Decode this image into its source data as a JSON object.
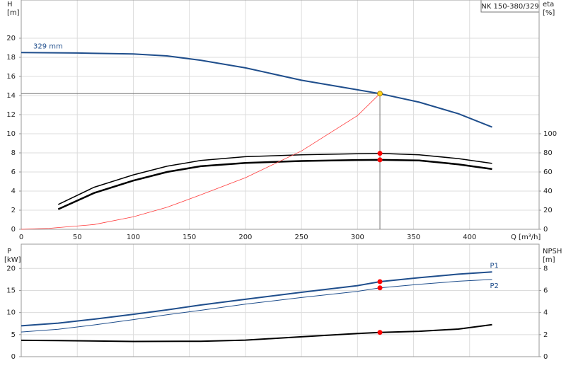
{
  "chart_data": [
    {
      "type": "line",
      "title": "NK 150-380/329",
      "ylabel": "H",
      "yunit": "[m]",
      "y2label": "eta",
      "y2unit": "[%]",
      "xlabel": "Q [m³/h]",
      "xlim": [
        0,
        462
      ],
      "xticks": [
        0,
        50,
        100,
        150,
        200,
        250,
        300,
        350,
        400
      ],
      "ylim": [
        0,
        24
      ],
      "yticks": [
        0,
        2,
        4,
        6,
        8,
        10,
        12,
        14,
        16,
        18,
        20
      ],
      "y2lim": [
        0,
        240
      ],
      "y2ticks": [
        0,
        20,
        40,
        60,
        80,
        100
      ],
      "grid": true,
      "crosshair": true,
      "series": [
        {
          "name": "329 mm",
          "label_at": "start-above",
          "color": "#1f4e8c",
          "width": 2,
          "x": [
            0,
            50,
            100,
            130,
            160,
            200,
            250,
            300,
            320,
            355,
            390,
            420
          ],
          "values": [
            18.5,
            18.45,
            18.35,
            18.15,
            17.7,
            16.9,
            15.6,
            14.6,
            14.2,
            13.3,
            12.1,
            10.7
          ]
        },
        {
          "color": "#000000",
          "width": 1.5,
          "axis": "y2",
          "x": [
            33,
            65,
            100,
            130,
            160,
            200,
            250,
            300,
            320,
            355,
            390,
            420
          ],
          "values": [
            26,
            44,
            57,
            66,
            72,
            76,
            78,
            79,
            79.5,
            78,
            74,
            69
          ]
        },
        {
          "color": "#000000",
          "width": 2.5,
          "axis": "y2",
          "x": [
            33,
            65,
            100,
            130,
            160,
            200,
            250,
            300,
            320,
            355,
            390,
            420
          ],
          "values": [
            21,
            38,
            51,
            60,
            66,
            69.5,
            71.5,
            72.5,
            72.7,
            72,
            68,
            63
          ]
        },
        {
          "color": "#ff3b3b",
          "width": 0.8,
          "x": [
            0,
            25,
            65,
            100,
            130,
            160,
            200,
            250,
            300,
            320
          ],
          "values": [
            0,
            0.1,
            0.5,
            1.3,
            2.3,
            3.6,
            5.4,
            8.2,
            11.9,
            14.2
          ]
        }
      ],
      "markers": [
        {
          "color": "#ffd21f",
          "x": [
            320
          ],
          "values": [
            14.2
          ]
        },
        {
          "color": "#ff0000",
          "axis": "y2",
          "x": [
            320,
            320
          ],
          "values": [
            79.5,
            72.7
          ]
        }
      ]
    },
    {
      "type": "line",
      "ylabel": "P",
      "yunit": "[kW]",
      "y2label": "NPSH",
      "y2unit": "[m]",
      "xlim": [
        0,
        462
      ],
      "xticks": [
        0,
        50,
        100,
        150,
        200,
        250,
        300,
        350,
        400
      ],
      "ylim": [
        0,
        25.5
      ],
      "yticks": [
        0,
        5,
        10,
        15,
        20
      ],
      "y2lim": [
        0,
        10.2
      ],
      "y2ticks": [
        0,
        2,
        4,
        6,
        8
      ],
      "grid": true,
      "series": [
        {
          "name": "P1",
          "label_at": "end-above",
          "color": "#1f4e8c",
          "width": 2,
          "x": [
            0,
            33,
            65,
            100,
            130,
            160,
            200,
            250,
            300,
            320,
            355,
            390,
            420
          ],
          "values": [
            7.0,
            7.6,
            8.5,
            9.6,
            10.6,
            11.7,
            13.0,
            14.6,
            16.1,
            17.0,
            17.9,
            18.7,
            19.2
          ]
        },
        {
          "name": "P2",
          "label_at": "end-below",
          "color": "#1f4e8c",
          "width": 1,
          "x": [
            0,
            33,
            65,
            100,
            130,
            160,
            200,
            250,
            300,
            320,
            355,
            390,
            420
          ],
          "values": [
            5.6,
            6.2,
            7.2,
            8.4,
            9.5,
            10.5,
            11.9,
            13.4,
            14.8,
            15.6,
            16.4,
            17.1,
            17.5
          ]
        },
        {
          "color": "#000000",
          "width": 2,
          "axis": "y2",
          "x": [
            0,
            33,
            100,
            160,
            200,
            250,
            300,
            320,
            355,
            390,
            420
          ],
          "values": [
            1.48,
            1.46,
            1.38,
            1.4,
            1.5,
            1.8,
            2.1,
            2.2,
            2.3,
            2.5,
            2.9
          ]
        }
      ],
      "markers": [
        {
          "color": "#ff0000",
          "x": [
            320,
            320
          ],
          "values": [
            17.0,
            15.6
          ]
        },
        {
          "color": "#ff0000",
          "axis": "y2",
          "x": [
            320
          ],
          "values": [
            2.2
          ]
        }
      ]
    }
  ]
}
